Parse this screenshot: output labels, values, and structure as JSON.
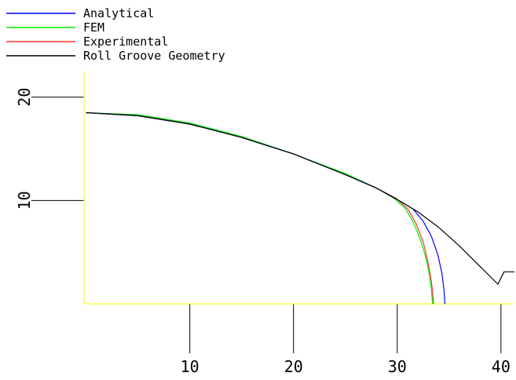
{
  "chart_data": {
    "type": "line",
    "title": "",
    "xlabel": "",
    "ylabel": "",
    "xlim": [
      -0.2,
      41.3
    ],
    "ylim": [
      0,
      21.5
    ],
    "x_ticks": [
      10,
      20,
      30,
      40
    ],
    "y_ticks": [
      10,
      20
    ],
    "grid": false,
    "legend_position": "top-left",
    "colors": {
      "axis_frame": "#ffff00",
      "tick_lines": "#000000",
      "text": "#000000"
    },
    "series": [
      {
        "name": "Analytical",
        "color": "#0000ff",
        "x": [
          0,
          5,
          10,
          15,
          20,
          25,
          28,
          30,
          31.5,
          32.5,
          33.3,
          33.9,
          34.3,
          34.5,
          34.6
        ],
        "y": [
          18.5,
          18.2,
          17.4,
          16.1,
          14.5,
          12.5,
          11.2,
          10.1,
          9.2,
          8.0,
          6.5,
          4.8,
          3.0,
          1.4,
          0
        ]
      },
      {
        "name": "FEM",
        "color": "#00ee00",
        "x": [
          0,
          5,
          10,
          15,
          20,
          25,
          28,
          29.7,
          30.8,
          31.6,
          32.3,
          32.8,
          33.1,
          33.3,
          33.4
        ],
        "y": [
          18.5,
          18.3,
          17.5,
          16.2,
          14.5,
          12.6,
          11.2,
          10.2,
          9.2,
          7.8,
          6.0,
          4.3,
          2.8,
          1.3,
          0
        ]
      },
      {
        "name": "Experimental",
        "color": "#ff3333",
        "x": [
          0,
          5,
          10,
          15,
          20,
          25,
          28,
          29.9,
          31,
          31.8,
          32.5,
          32.9,
          33.2,
          33.4,
          33.5
        ],
        "y": [
          18.5,
          18.2,
          17.4,
          16.1,
          14.5,
          12.5,
          11.2,
          10.2,
          9.2,
          7.8,
          6.0,
          4.3,
          2.8,
          1.3,
          0
        ]
      },
      {
        "name": "Roll Groove Geometry",
        "color": "#000000",
        "x": [
          0,
          5,
          10,
          15,
          20,
          25,
          28,
          30,
          32,
          34,
          36,
          38,
          39.7,
          40.3,
          41.3
        ],
        "y": [
          18.5,
          18.2,
          17.4,
          16.1,
          14.5,
          12.5,
          11.2,
          10.1,
          8.9,
          7.4,
          5.6,
          3.6,
          1.9,
          3.1,
          3.1
        ]
      }
    ]
  }
}
